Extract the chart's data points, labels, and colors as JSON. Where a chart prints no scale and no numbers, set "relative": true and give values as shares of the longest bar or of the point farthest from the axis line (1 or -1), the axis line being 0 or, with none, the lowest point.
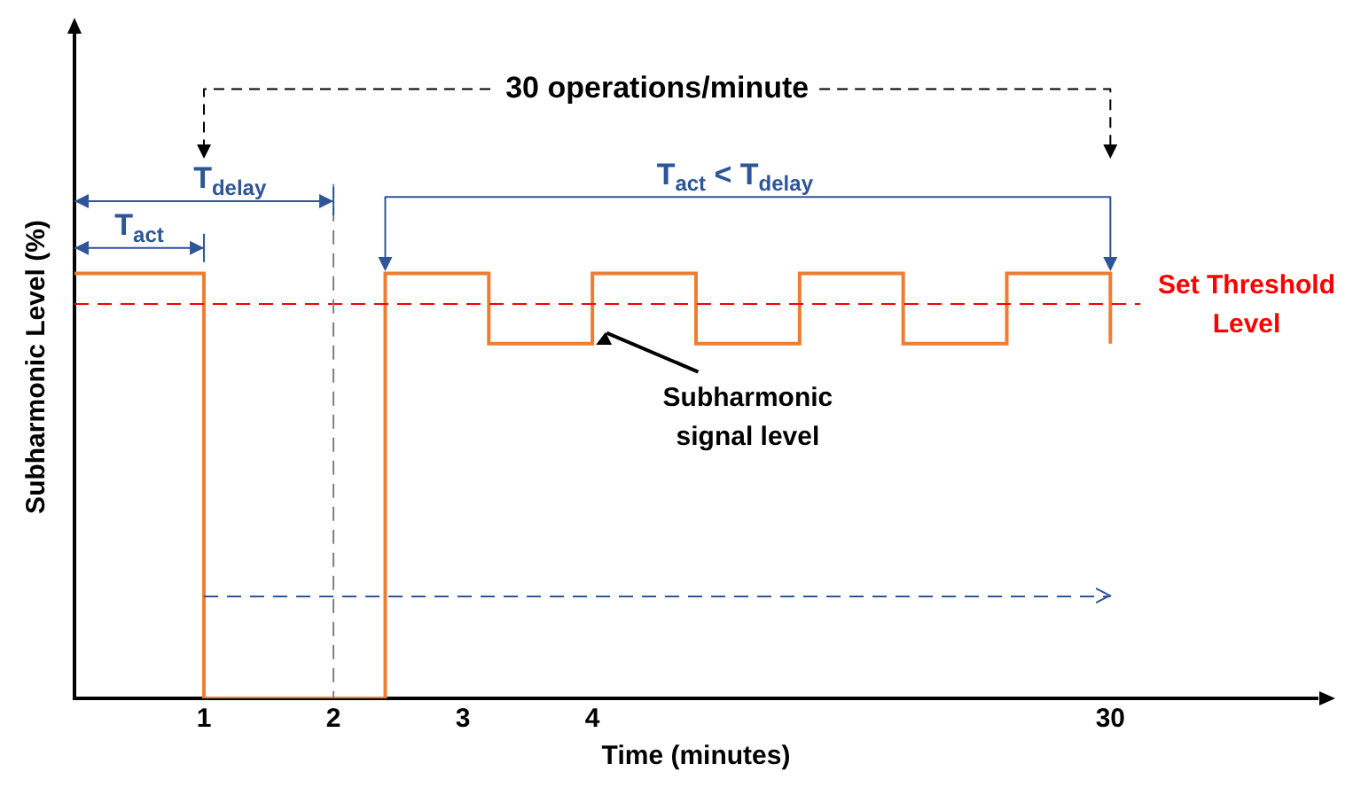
{
  "chart_data": {
    "type": "step",
    "xlabel": "Time (minutes)",
    "ylabel": "Subharmonic Level (%)",
    "relative": true,
    "categories": [
      null,
      null,
      null,
      null,
      null,
      "1",
      null,
      null,
      null,
      null,
      "2",
      null,
      null,
      null,
      null,
      "3",
      null,
      null,
      null,
      null,
      "4",
      null,
      null,
      null,
      null,
      null,
      null,
      null,
      null,
      null,
      null,
      null,
      null,
      null,
      null,
      null,
      null,
      null,
      null,
      null,
      "30",
      null,
      null,
      null,
      null,
      null,
      null,
      null,
      null
    ],
    "series": [
      {
        "color": "#ed7d31",
        "values": [
          1,
          1,
          1,
          1,
          1,
          0,
          0,
          0,
          0,
          0,
          0,
          0,
          1,
          1,
          1,
          1,
          0.835,
          0.835,
          0.835,
          0.835,
          1,
          1,
          1,
          1,
          0.835,
          0.835,
          0.835,
          0.835,
          1,
          1,
          1,
          1,
          0.835,
          0.835,
          0.835,
          0.835,
          1,
          1,
          1,
          1,
          0.835,
          null,
          null,
          null,
          null,
          null,
          null,
          null,
          null
        ]
      }
    ],
    "ref_lines": [
      {
        "axis": "y",
        "value": 0.928,
        "label": "Set Threshold Level",
        "color": "#ff0000",
        "line_style": "dashed"
      },
      {
        "axis": "x",
        "value": "2",
        "color": "#7f7f7f",
        "line_style": "dashed"
      },
      {
        "axis": "y",
        "value": 0.24,
        "color": "#2e5597",
        "line_style": "dashed"
      }
    ],
    "annotations": [
      "30 operations/minute",
      "T$_{delay}$",
      "T$_{act}$",
      "T$_{act}$ < T$_{delay}$",
      "Subharmonic\nsignal level"
    ]
  }
}
